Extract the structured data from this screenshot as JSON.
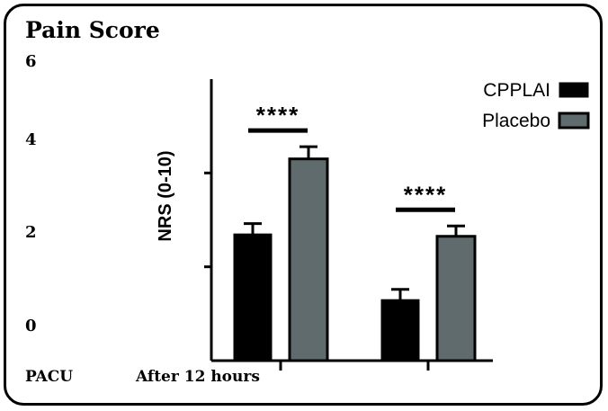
{
  "chart_data": {
    "type": "bar",
    "title": "Pain Score",
    "ylabel": "NRS (0-10)",
    "ylim": [
      0,
      6
    ],
    "yticks": [
      "6",
      "4",
      "2",
      "0"
    ],
    "categories": [
      "PACU",
      "After 12 hours"
    ],
    "series": [
      {
        "name": "CPPLAI",
        "values": [
          2.7,
          1.3
        ],
        "errors": [
          0.22,
          0.22
        ],
        "color": "#000000"
      },
      {
        "name": "Placebo",
        "values": [
          4.3,
          2.65
        ],
        "errors": [
          0.26,
          0.22
        ],
        "color": "#5f6b6d"
      }
    ],
    "annotations": [
      "****",
      "****"
    ],
    "legend": "top-right",
    "grid": false
  }
}
